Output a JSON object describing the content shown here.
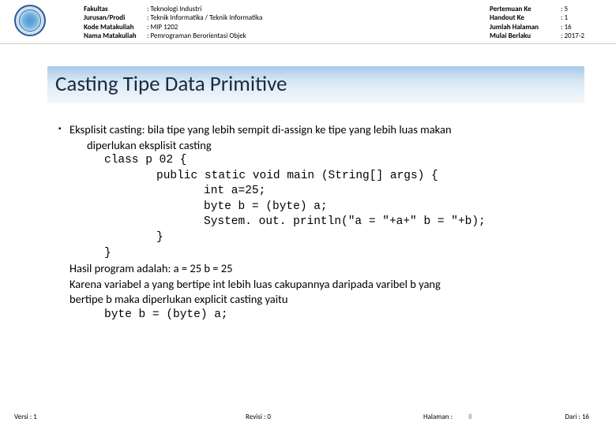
{
  "header": {
    "left": {
      "labels": [
        "Fakultas",
        "Jurusan/Prodi",
        "Kode Matakuliah",
        "Nama Matakuliah"
      ],
      "values": [
        ": Teknologi Industri",
        ": Teknik Informatika / Teknik Informatika",
        ": MIP 1202",
        ": Pemrograman Berorientasi Objek"
      ]
    },
    "right": {
      "labels": [
        "Pertemuan Ke",
        "Handout Ke",
        "Jumlah Halaman",
        "Mulai Berlaku"
      ],
      "values": [
        ": 5",
        ": 1",
        ": 16",
        ": 2017-2"
      ]
    }
  },
  "title": "Casting Tipe Data Primitive",
  "content": {
    "bullet": "Eksplisit casting: bila tipe yang lebih sempit di-assign ke tipe yang lebih luas makan",
    "bullet_cont": "diperlukan eksplisit casting",
    "code": {
      "l1": "class p 02 {",
      "l2": "public static void main (String[] args) {",
      "l3a": "int a=25;",
      "l3b": "byte b = (byte) a;",
      "l3c": "System. out. println(\"a = \"+a+\" b = \"+b);",
      "l2c": "}",
      "l1c": "}"
    },
    "result1": "Hasil program adalah: a = 25 b = 25",
    "result2": "Karena variabel a yang bertipe int lebih luas cakupannya daripada varibel b yang",
    "result3": "bertipe b maka diperlukan explicit casting yaitu",
    "code_final": "byte b = (byte) a;"
  },
  "footer": {
    "versi": "Versi : 1",
    "revisi": "Revisi : 0",
    "halaman": "Halaman :",
    "pagenum": "8",
    "dari": "Dari : 16"
  }
}
